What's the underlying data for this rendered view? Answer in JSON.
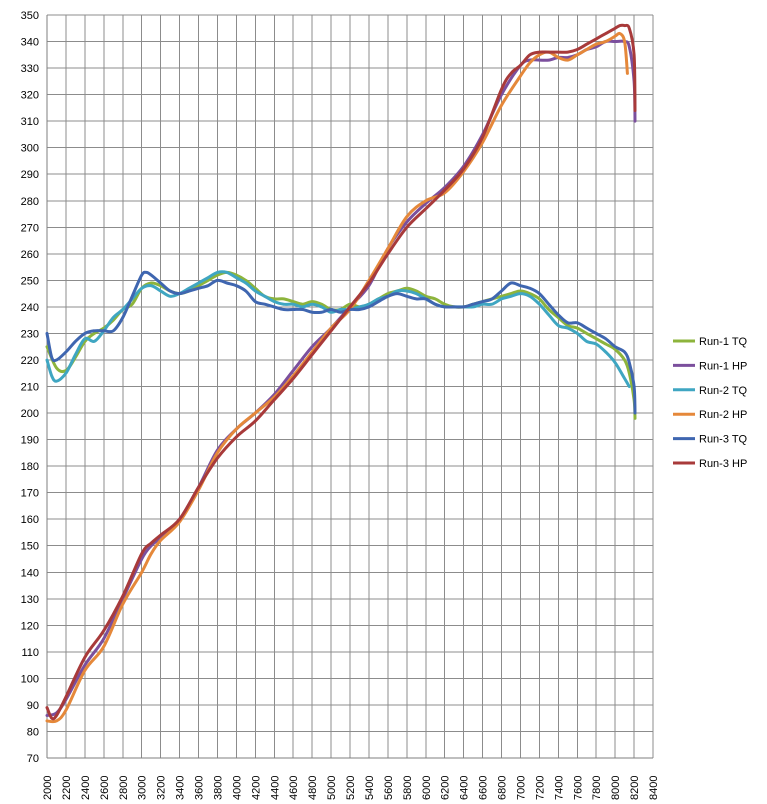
{
  "chart_data": {
    "type": "line",
    "title": "",
    "xlabel": "",
    "ylabel": "",
    "xlim": [
      2000,
      8400
    ],
    "ylim": [
      70,
      350
    ],
    "xticks": [
      "2000",
      "2200",
      "2400",
      "2600",
      "2800",
      "3000",
      "3200",
      "3400",
      "3600",
      "3800",
      "4000",
      "4200",
      "4400",
      "4600",
      "4800",
      "5000",
      "5200",
      "5400",
      "5600",
      "5800",
      "6000",
      "6200",
      "6400",
      "6600",
      "6800",
      "7000",
      "7200",
      "7400",
      "7600",
      "7800",
      "8000",
      "8200",
      "8400"
    ],
    "yticks": [
      "70",
      "80",
      "90",
      "100",
      "110",
      "120",
      "130",
      "140",
      "150",
      "160",
      "170",
      "180",
      "190",
      "200",
      "210",
      "220",
      "230",
      "240",
      "250",
      "260",
      "270",
      "280",
      "290",
      "300",
      "310",
      "320",
      "330",
      "340",
      "350"
    ],
    "grid": true,
    "legend": "right",
    "series": [
      {
        "name": "Run-1 TQ",
        "color": "#8db43c",
        "x": [
          2000,
          2100,
          2200,
          2300,
          2400,
          2500,
          2600,
          2700,
          2800,
          2900,
          3000,
          3100,
          3200,
          3300,
          3400,
          3500,
          3600,
          3700,
          3800,
          3900,
          4000,
          4100,
          4200,
          4300,
          4400,
          4500,
          4600,
          4700,
          4800,
          4900,
          5000,
          5100,
          5200,
          5300,
          5400,
          5500,
          5600,
          5700,
          5800,
          5900,
          6000,
          6100,
          6200,
          6300,
          6400,
          6500,
          6600,
          6700,
          6800,
          6900,
          7000,
          7100,
          7200,
          7300,
          7400,
          7500,
          7600,
          7700,
          7800,
          7900,
          8000,
          8100,
          8150,
          8200,
          8210
        ],
        "y": [
          225,
          217,
          216,
          221,
          227,
          230,
          232,
          235,
          239,
          241,
          247,
          249,
          248,
          246,
          245,
          246,
          248,
          250,
          252,
          253,
          252,
          250,
          247,
          244,
          243,
          243,
          242,
          241,
          242,
          241,
          239,
          239,
          241,
          240,
          241,
          243,
          245,
          246,
          247,
          246,
          244,
          243,
          241,
          240,
          240,
          241,
          242,
          243,
          244,
          245,
          246,
          245,
          243,
          239,
          236,
          233,
          232,
          230,
          228,
          226,
          224,
          220,
          215,
          205,
          198
        ]
      },
      {
        "name": "Run-1 HP",
        "color": "#7b4f9d",
        "x": [
          2000,
          2100,
          2200,
          2400,
          2600,
          2800,
          3000,
          3100,
          3200,
          3400,
          3600,
          3800,
          4000,
          4200,
          4400,
          4600,
          4800,
          5000,
          5200,
          5400,
          5600,
          5800,
          6000,
          6200,
          6400,
          6600,
          6800,
          7000,
          7100,
          7200,
          7300,
          7400,
          7500,
          7600,
          7700,
          7800,
          7900,
          8000,
          8100,
          8150,
          8200,
          8210
        ],
        "y": [
          86,
          87,
          92,
          105,
          115,
          130,
          145,
          150,
          153,
          160,
          172,
          186,
          194,
          200,
          207,
          216,
          225,
          232,
          240,
          248,
          262,
          272,
          279,
          285,
          293,
          305,
          320,
          331,
          333,
          333,
          333,
          334,
          334,
          335,
          337,
          338,
          340,
          340,
          340,
          338,
          325,
          310
        ]
      },
      {
        "name": "Run-2 TQ",
        "color": "#3fa6c2",
        "x": [
          2000,
          2050,
          2100,
          2200,
          2300,
          2400,
          2500,
          2600,
          2700,
          2800,
          2900,
          3000,
          3100,
          3200,
          3300,
          3400,
          3500,
          3600,
          3700,
          3800,
          3900,
          4000,
          4100,
          4200,
          4300,
          4400,
          4500,
          4600,
          4700,
          4800,
          4900,
          5000,
          5100,
          5200,
          5300,
          5400,
          5500,
          5600,
          5700,
          5800,
          5900,
          6000,
          6100,
          6200,
          6300,
          6400,
          6500,
          6600,
          6700,
          6800,
          6900,
          7000,
          7100,
          7200,
          7300,
          7400,
          7500,
          7600,
          7700,
          7800,
          7900,
          8000,
          8100,
          8150
        ],
        "y": [
          220,
          214,
          212,
          215,
          222,
          228,
          227,
          231,
          236,
          239,
          243,
          247,
          248,
          246,
          244,
          245,
          247,
          249,
          251,
          253,
          253,
          251,
          249,
          246,
          244,
          242,
          241,
          241,
          240,
          241,
          240,
          238,
          239,
          239,
          240,
          241,
          243,
          244,
          246,
          246,
          245,
          243,
          241,
          240,
          240,
          240,
          240,
          241,
          241,
          243,
          244,
          245,
          244,
          241,
          237,
          233,
          232,
          230,
          227,
          226,
          223,
          219,
          213,
          210
        ]
      },
      {
        "name": "Run-2 HP",
        "color": "#e5883a",
        "x": [
          2000,
          2100,
          2200,
          2400,
          2600,
          2800,
          3000,
          3100,
          3200,
          3400,
          3600,
          3800,
          4000,
          4200,
          4400,
          4600,
          4800,
          5000,
          5200,
          5400,
          5600,
          5800,
          6000,
          6200,
          6400,
          6600,
          6800,
          7000,
          7100,
          7200,
          7300,
          7400,
          7500,
          7600,
          7700,
          7800,
          7900,
          8000,
          8050,
          8100,
          8130
        ],
        "y": [
          84,
          84,
          88,
          103,
          112,
          128,
          140,
          147,
          152,
          159,
          171,
          185,
          194,
          200,
          206,
          214,
          223,
          232,
          239,
          250,
          262,
          274,
          280,
          283,
          291,
          302,
          316,
          327,
          332,
          335,
          336,
          334,
          333,
          335,
          337,
          339,
          340,
          342,
          343,
          340,
          328
        ]
      },
      {
        "name": "Run-3 TQ",
        "color": "#3f66b0",
        "x": [
          2000,
          2050,
          2100,
          2200,
          2300,
          2400,
          2500,
          2600,
          2700,
          2800,
          2900,
          3000,
          3050,
          3100,
          3200,
          3300,
          3400,
          3500,
          3600,
          3700,
          3800,
          3900,
          4000,
          4100,
          4200,
          4300,
          4400,
          4500,
          4600,
          4700,
          4800,
          4900,
          5000,
          5100,
          5200,
          5300,
          5400,
          5500,
          5600,
          5700,
          5800,
          5900,
          6000,
          6100,
          6200,
          6300,
          6400,
          6500,
          6600,
          6700,
          6800,
          6900,
          7000,
          7100,
          7200,
          7300,
          7400,
          7500,
          7600,
          7700,
          7800,
          7900,
          8000,
          8100,
          8150,
          8200,
          8210
        ],
        "y": [
          230,
          221,
          220,
          223,
          227,
          230,
          231,
          231,
          231,
          236,
          244,
          252,
          253,
          252,
          249,
          246,
          245,
          246,
          247,
          248,
          250,
          249,
          248,
          246,
          242,
          241,
          240,
          239,
          239,
          239,
          238,
          238,
          239,
          238,
          239,
          239,
          240,
          242,
          244,
          245,
          244,
          243,
          243,
          241,
          240,
          240,
          240,
          241,
          242,
          243,
          246,
          249,
          248,
          247,
          245,
          241,
          237,
          234,
          234,
          232,
          230,
          228,
          225,
          223,
          219,
          210,
          200
        ]
      },
      {
        "name": "Run-3 HP",
        "color": "#a83a3a",
        "x": [
          2000,
          2050,
          2100,
          2200,
          2400,
          2600,
          2800,
          3000,
          3100,
          3200,
          3400,
          3600,
          3800,
          4000,
          4200,
          4400,
          4600,
          4800,
          5000,
          5200,
          5400,
          5600,
          5800,
          6000,
          6200,
          6400,
          6600,
          6800,
          6900,
          7000,
          7100,
          7200,
          7300,
          7400,
          7500,
          7600,
          7700,
          7800,
          7900,
          8000,
          8050,
          8100,
          8150,
          8200,
          8210
        ],
        "y": [
          89,
          85,
          86,
          93,
          108,
          118,
          131,
          147,
          151,
          154,
          160,
          172,
          183,
          191,
          197,
          205,
          213,
          222,
          231,
          240,
          249,
          260,
          270,
          277,
          284,
          292,
          304,
          322,
          328,
          331,
          335,
          336,
          336,
          336,
          336,
          337,
          339,
          341,
          343,
          345,
          346,
          346,
          345,
          335,
          314
        ]
      }
    ]
  }
}
